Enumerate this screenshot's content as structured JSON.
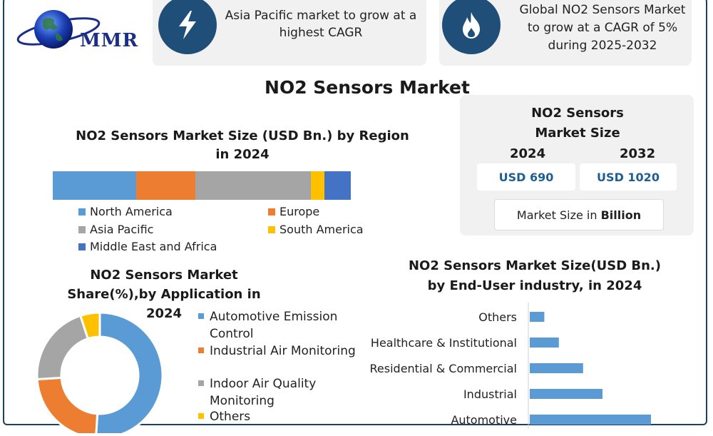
{
  "logo": {
    "text": "MMR"
  },
  "highlights": [
    {
      "icon": "lightning-icon",
      "text": "Asia Pacific market to grow at a highest CAGR"
    },
    {
      "icon": "flame-icon",
      "text": "Global NO2 Sensors Market to grow at a CAGR of 5% during 2025-2032"
    }
  ],
  "main_title": "NO2 Sensors Market",
  "market_size": {
    "title": "NO2 Sensors Market Size",
    "year_a": "2024",
    "year_b": "2032",
    "value_a": "USD 690",
    "value_b": "USD 1020",
    "unit_prefix": "Market Size in ",
    "unit_bold": "Billion"
  },
  "colors": {
    "north_america": "#5b9bd5",
    "europe": "#ed7d31",
    "asia_pacific": "#a5a5a5",
    "south_america": "#ffc000",
    "mea": "#4472c4"
  },
  "chart_data": [
    {
      "type": "bar",
      "stacked": true,
      "orientation": "horizontal",
      "title": "NO2 Sensors Market Size (USD Bn.) by Region in 2024",
      "series": [
        {
          "name": "North America",
          "values": [
            117
          ],
          "color": "#5b9bd5"
        },
        {
          "name": "Europe",
          "values": [
            83
          ],
          "color": "#ed7d31"
        },
        {
          "name": "Asia Pacific",
          "values": [
            162
          ],
          "color": "#a5a5a5"
        },
        {
          "name": "South America",
          "values": [
            19
          ],
          "color": "#ffc000"
        },
        {
          "name": "Middle East and Africa",
          "values": [
            37
          ],
          "color": "#4472c4"
        }
      ],
      "legend": "bottom"
    },
    {
      "type": "pie",
      "donut": true,
      "title": "NO2 Sensors Market Share(%),by Application in 2024",
      "labels": [
        "Automotive Emission Control",
        "Industrial Air Monitoring",
        "Indoor Air Quality Monitoring",
        "Others"
      ],
      "values": [
        51,
        23,
        21,
        5
      ],
      "colors": [
        "#5b9bd5",
        "#ed7d31",
        "#a5a5a5",
        "#ffc000"
      ],
      "legend": "right"
    },
    {
      "type": "bar",
      "orientation": "horizontal",
      "title": "NO2 Sensors Market Size(USD Bn.) by End-User industry, in 2024",
      "categories": [
        "Others",
        "Healthcare & Institutional",
        "Residential & Commercial",
        "Industrial",
        "Automotive"
      ],
      "values": [
        15,
        30,
        55,
        75,
        125
      ],
      "color": "#5b9bd5"
    }
  ]
}
